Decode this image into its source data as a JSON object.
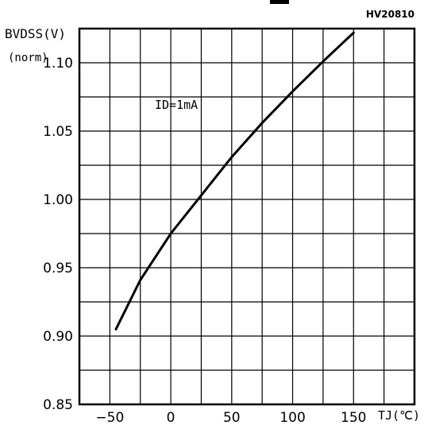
{
  "figure": {
    "part_code": "HV20810",
    "ylabel_main": "BVDSS(V)",
    "ylabel_norm": "(norm)",
    "xlabel": "TJ(℃)",
    "annotation": "ID=1mA"
  },
  "chart_data": {
    "type": "line",
    "title": "",
    "xlabel": "TJ(℃)",
    "ylabel": "BVDSS(V) (norm)",
    "xlim": [
      -75,
      200
    ],
    "ylim": [
      0.85,
      1.125
    ],
    "x_ticks": [
      -50,
      0,
      50,
      100,
      150
    ],
    "y_ticks": [
      0.85,
      0.9,
      0.95,
      1.0,
      1.05,
      1.1
    ],
    "x_tick_labels": [
      "-50",
      "0",
      "50",
      "100",
      "150"
    ],
    "y_tick_labels": [
      "0.85",
      "0.90",
      "0.95",
      "1.00",
      "1.05",
      "1.10"
    ],
    "grid": true,
    "annotations": [
      "ID=1mA"
    ],
    "series": [
      {
        "x": [
          -45,
          -25,
          0,
          25,
          50,
          75,
          100,
          125,
          150
        ],
        "y": [
          0.905,
          0.941,
          0.975,
          1.003,
          1.031,
          1.056,
          1.079,
          1.101,
          1.122
        ]
      }
    ]
  }
}
